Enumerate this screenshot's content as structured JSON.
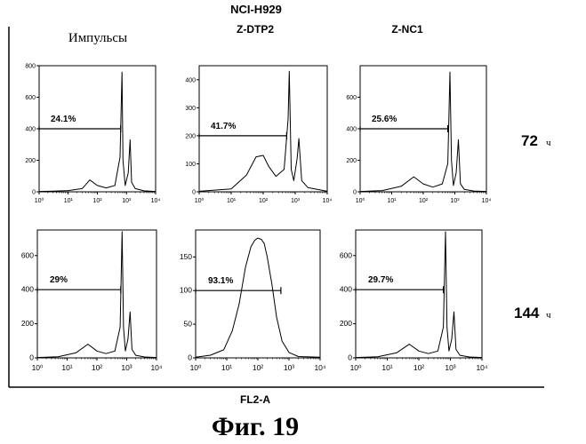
{
  "figure": {
    "cell_line": "NCI-H929",
    "x_axis_label": "FL2-A",
    "caption": "Фиг.  19"
  },
  "columns": [
    {
      "label": "Импульсы"
    },
    {
      "label": "Z-DTP2"
    },
    {
      "label": "Z-NC1"
    }
  ],
  "rows": [
    {
      "time": "72",
      "unit": "ч"
    },
    {
      "time": "144",
      "unit": "ч"
    }
  ],
  "chart_data": [
    {
      "type": "area",
      "row": 0,
      "col": 0,
      "percent_label": "24.1%",
      "marker_start": 1,
      "marker_end": 630,
      "ylim": [
        0,
        800
      ],
      "yticks": [
        0,
        200,
        400,
        600,
        800
      ],
      "xlim": [
        1,
        10000
      ],
      "xscale": "log",
      "xtick_labels": [
        "10⁰",
        "10¹",
        "10²",
        "10³",
        "10⁴"
      ],
      "peaks": {
        "g0g1": 700,
        "g2m": 1330,
        "subg1": 55
      },
      "x": [
        1,
        3,
        10,
        30,
        55,
        100,
        200,
        400,
        600,
        700,
        760,
        900,
        1150,
        1330,
        1500,
        2000,
        4000,
        10000
      ],
      "y": [
        2,
        4,
        8,
        20,
        75,
        40,
        25,
        40,
        220,
        760,
        200,
        40,
        120,
        330,
        60,
        20,
        6,
        2
      ]
    },
    {
      "type": "area",
      "row": 0,
      "col": 1,
      "percent_label": "41.7%",
      "marker_start": 1,
      "marker_end": 540,
      "ylim": [
        0,
        450
      ],
      "yticks": [
        0,
        100,
        200,
        300,
        400
      ],
      "xlim": [
        1,
        10000
      ],
      "xscale": "log",
      "xtick_labels": [
        "10⁰",
        "10¹",
        "10²",
        "10³",
        "10⁴"
      ],
      "x": [
        1,
        10,
        30,
        60,
        100,
        150,
        250,
        450,
        600,
        650,
        750,
        900,
        1150,
        1300,
        1600,
        2500,
        10000
      ],
      "y": [
        2,
        10,
        60,
        125,
        130,
        90,
        55,
        80,
        260,
        430,
        80,
        40,
        120,
        190,
        40,
        15,
        2
      ]
    },
    {
      "type": "area",
      "row": 0,
      "col": 2,
      "percent_label": "25.6%",
      "marker_start": 1,
      "marker_end": 600,
      "ylim": [
        0,
        800
      ],
      "yticks": [
        0,
        200,
        400,
        600
      ],
      "xlim": [
        1,
        10000
      ],
      "xscale": "log",
      "xtick_labels": [
        "10⁰",
        "10¹",
        "10²",
        "10³",
        "10⁴"
      ],
      "x": [
        1,
        5,
        20,
        50,
        100,
        200,
        400,
        600,
        700,
        780,
        900,
        1100,
        1300,
        1500,
        2000,
        4000,
        10000
      ],
      "y": [
        2,
        8,
        35,
        95,
        50,
        30,
        50,
        180,
        760,
        200,
        40,
        120,
        330,
        50,
        15,
        5,
        2
      ]
    },
    {
      "type": "area",
      "row": 1,
      "col": 0,
      "percent_label": "29%",
      "marker_start": 1,
      "marker_end": 630,
      "ylim": [
        0,
        750
      ],
      "yticks": [
        0,
        200,
        400,
        600
      ],
      "xlim": [
        1,
        10000
      ],
      "xscale": "log",
      "xtick_labels": [
        "10⁰",
        "10¹",
        "10²",
        "10³",
        "10⁴"
      ],
      "x": [
        1,
        5,
        20,
        50,
        100,
        200,
        400,
        600,
        700,
        780,
        900,
        1100,
        1300,
        1500,
        2000,
        4000,
        10000
      ],
      "y": [
        2,
        6,
        30,
        80,
        40,
        25,
        40,
        180,
        740,
        180,
        40,
        110,
        270,
        50,
        15,
        5,
        2
      ]
    },
    {
      "type": "area",
      "row": 1,
      "col": 1,
      "percent_label": "93.1%",
      "marker_start": 1,
      "marker_end": 550,
      "ylim": [
        0,
        190
      ],
      "yticks": [
        0,
        50,
        100,
        150
      ],
      "xlim": [
        1,
        10000
      ],
      "xscale": "log",
      "xtick_labels": [
        "10⁰",
        "10¹",
        "10²",
        "10³",
        "10⁴"
      ],
      "x": [
        1,
        3,
        8,
        15,
        25,
        40,
        60,
        80,
        100,
        130,
        160,
        200,
        280,
        400,
        600,
        1000,
        2000,
        10000
      ],
      "y": [
        1,
        4,
        12,
        40,
        80,
        135,
        165,
        175,
        178,
        176,
        170,
        150,
        110,
        60,
        25,
        8,
        2,
        1
      ]
    },
    {
      "type": "area",
      "row": 1,
      "col": 2,
      "percent_label": "29.7%",
      "marker_start": 1,
      "marker_end": 600,
      "ylim": [
        0,
        750
      ],
      "yticks": [
        0,
        200,
        400,
        600
      ],
      "xlim": [
        1,
        10000
      ],
      "xscale": "log",
      "xtick_labels": [
        "10⁰",
        "10¹",
        "10²",
        "10³",
        "10⁴"
      ],
      "x": [
        1,
        5,
        20,
        50,
        100,
        200,
        400,
        600,
        700,
        780,
        900,
        1100,
        1300,
        1500,
        2000,
        4000,
        10000
      ],
      "y": [
        2,
        6,
        30,
        80,
        40,
        25,
        40,
        180,
        740,
        180,
        40,
        110,
        270,
        50,
        15,
        5,
        2
      ]
    }
  ]
}
